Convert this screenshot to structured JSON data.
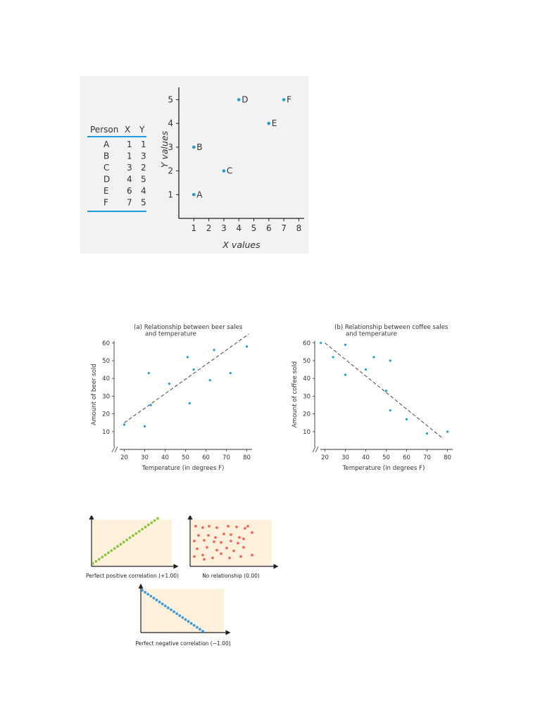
{
  "scatter_with_table": {
    "table": {
      "headers": [
        "Person",
        "X",
        "Y"
      ],
      "rows": [
        {
          "person": "A",
          "x": "1",
          "y": "1"
        },
        {
          "person": "B",
          "x": "1",
          "y": "3"
        },
        {
          "person": "C",
          "x": "3",
          "y": "2"
        },
        {
          "person": "D",
          "x": "4",
          "y": "5"
        },
        {
          "person": "E",
          "x": "6",
          "y": "4"
        },
        {
          "person": "F",
          "x": "7",
          "y": "5"
        }
      ]
    }
  },
  "captions": {
    "positive": "Perfect positive correlation (+1.00)",
    "none": "No relationship (0.00)",
    "negative": "Perfect negative correlation (−1.00)"
  },
  "colors": {
    "point_blue": "#1e9bd7",
    "table_rule": "#1e9bd7",
    "panel_bg": "#f2f2f2",
    "cream": "#fdf1dc",
    "green": "#8cc63f",
    "red": "#ee6a5c",
    "blue_dot": "#3d9bd9"
  },
  "chart_data": [
    {
      "type": "scatter",
      "title": "",
      "xlabel": "X values",
      "ylabel": "Y values",
      "xlim": [
        0,
        8
      ],
      "ylim": [
        0,
        5
      ],
      "xticks": [
        "1",
        "2",
        "3",
        "4",
        "5",
        "6",
        "7",
        "8"
      ],
      "yticks": [
        "1",
        "2",
        "3",
        "4",
        "5"
      ],
      "points": [
        {
          "label": "A",
          "x": 1,
          "y": 1
        },
        {
          "label": "B",
          "x": 1,
          "y": 3
        },
        {
          "label": "C",
          "x": 3,
          "y": 2
        },
        {
          "label": "D",
          "x": 4,
          "y": 5
        },
        {
          "label": "E",
          "x": 6,
          "y": 4
        },
        {
          "label": "F",
          "x": 7,
          "y": 5
        }
      ]
    },
    {
      "type": "scatter",
      "title": "(a) Relationship between beer sales and temperature",
      "title_lines": [
        "(a) Relationship between beer sales",
        "and temperature"
      ],
      "xlabel": "Temperature (in degrees F)",
      "ylabel": "Amount of beer sold",
      "xticks": [
        "20",
        "30",
        "40",
        "50",
        "60",
        "70",
        "80"
      ],
      "yticks": [
        "10",
        "20",
        "30",
        "40",
        "50",
        "60"
      ],
      "points": [
        {
          "x": 20,
          "y": 14
        },
        {
          "x": 30,
          "y": 13
        },
        {
          "x": 32,
          "y": 43
        },
        {
          "x": 33,
          "y": 25
        },
        {
          "x": 42,
          "y": 37
        },
        {
          "x": 51,
          "y": 52
        },
        {
          "x": 52,
          "y": 26
        },
        {
          "x": 54,
          "y": 45
        },
        {
          "x": 62,
          "y": 39
        },
        {
          "x": 64,
          "y": 56
        },
        {
          "x": 72,
          "y": 43
        },
        {
          "x": 80,
          "y": 58
        }
      ],
      "trend_line": {
        "style": "dashed",
        "from": {
          "x": 20,
          "y": 15
        },
        "to": {
          "x": 81,
          "y": 65
        }
      }
    },
    {
      "type": "scatter",
      "title": "(b) Relationship between coffee sales and temperature",
      "title_lines": [
        "(b) Relationship between coffee sales",
        "and temperature"
      ],
      "xlabel": "Temperature (in degrees F)",
      "ylabel": "Amount of coffee sold",
      "xticks": [
        "20",
        "30",
        "40",
        "50",
        "60",
        "70",
        "80"
      ],
      "yticks": [
        "10",
        "20",
        "30",
        "40",
        "50",
        "60"
      ],
      "points": [
        {
          "x": 18,
          "y": 60
        },
        {
          "x": 24,
          "y": 52
        },
        {
          "x": 30,
          "y": 59
        },
        {
          "x": 30,
          "y": 42
        },
        {
          "x": 40,
          "y": 45
        },
        {
          "x": 44,
          "y": 52
        },
        {
          "x": 50,
          "y": 33
        },
        {
          "x": 52,
          "y": 50
        },
        {
          "x": 52,
          "y": 22
        },
        {
          "x": 60,
          "y": 17
        },
        {
          "x": 70,
          "y": 9
        },
        {
          "x": 80,
          "y": 10
        }
      ],
      "trend_line": {
        "style": "dashed",
        "from": {
          "x": 20,
          "y": 60
        },
        "to": {
          "x": 78,
          "y": 6
        }
      }
    }
  ]
}
